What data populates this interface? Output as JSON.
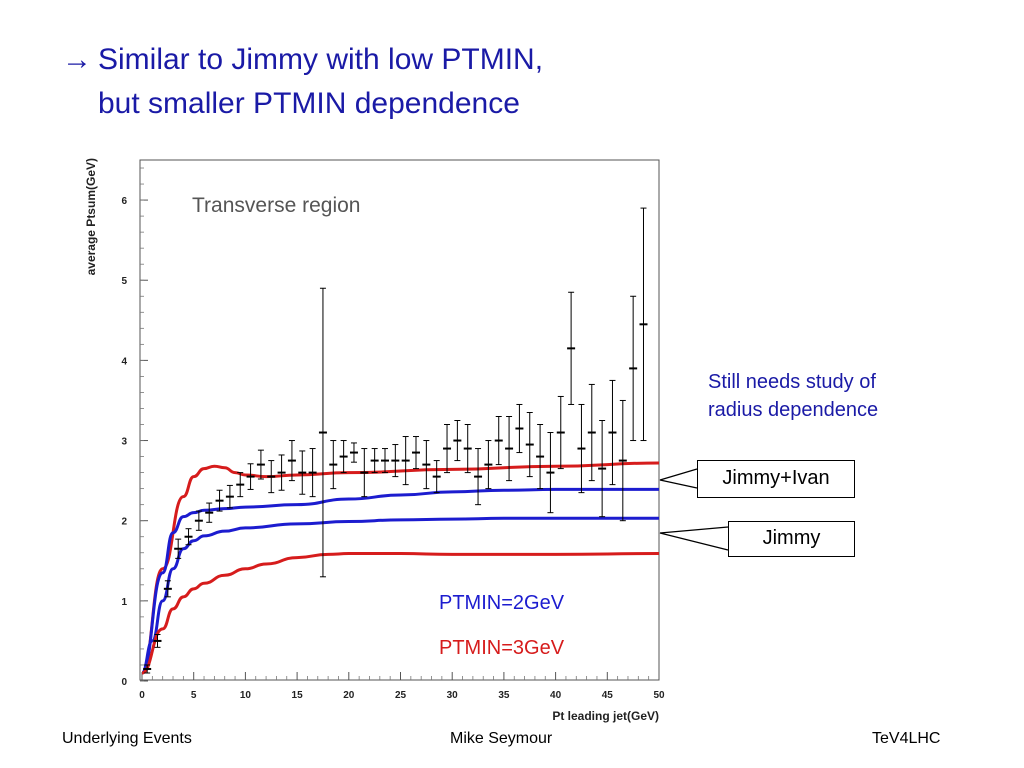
{
  "slide": {
    "title_arrow": "→",
    "title_line1": "Similar to Jimmy with low PTMIN,",
    "title_line2": "but smaller PTMIN dependence",
    "annotation_line1": "Still needs study of",
    "annotation_line2": "radius dependence",
    "callout_top": "Jimmy+Ivan",
    "callout_bottom": "Jimmy",
    "legend_blue": "PTMIN=2GeV",
    "legend_red": "PTMIN=3GeV",
    "footer_left": "Underlying Events",
    "footer_center": "Mike Seymour",
    "footer_right": "TeV4LHC"
  },
  "colors": {
    "title_blue": "#1a1aa6",
    "curve_blue": "#1c1ccf",
    "curve_red": "#d61c1c",
    "legend_blue": "#1c1ccf",
    "legend_red": "#d61c1c"
  },
  "chart_data": {
    "type": "line",
    "title": "Transverse region",
    "xlabel": "Pt leading jet(GeV)",
    "ylabel": "average Ptsum(GeV)",
    "xlim": [
      0,
      50
    ],
    "ylim": [
      0,
      6.5
    ],
    "xticks": [
      0,
      5,
      10,
      15,
      20,
      25,
      30,
      35,
      40,
      45,
      50
    ],
    "yticks": [
      0,
      1,
      2,
      3,
      4,
      5,
      6
    ],
    "grid": false,
    "data_points": [
      {
        "x": 0.5,
        "y": 0.15,
        "err": 0.05
      },
      {
        "x": 1.5,
        "y": 0.5,
        "err": 0.08
      },
      {
        "x": 2.5,
        "y": 1.15,
        "err": 0.1
      },
      {
        "x": 3.5,
        "y": 1.65,
        "err": 0.12
      },
      {
        "x": 4.5,
        "y": 1.8,
        "err": 0.1
      },
      {
        "x": 5.5,
        "y": 2.0,
        "err": 0.12
      },
      {
        "x": 6.5,
        "y": 2.1,
        "err": 0.12
      },
      {
        "x": 7.5,
        "y": 2.25,
        "err": 0.13
      },
      {
        "x": 8.5,
        "y": 2.3,
        "err": 0.14
      },
      {
        "x": 9.5,
        "y": 2.45,
        "err": 0.15
      },
      {
        "x": 10.5,
        "y": 2.55,
        "err": 0.16
      },
      {
        "x": 11.5,
        "y": 2.7,
        "err": 0.18
      },
      {
        "x": 12.5,
        "y": 2.55,
        "err": 0.2
      },
      {
        "x": 13.5,
        "y": 2.6,
        "err": 0.22
      },
      {
        "x": 14.5,
        "y": 2.75,
        "err": 0.25
      },
      {
        "x": 15.5,
        "y": 2.6,
        "err": 0.27
      },
      {
        "x": 16.5,
        "y": 2.6,
        "err": 0.3
      },
      {
        "x": 17.5,
        "y": 3.1,
        "err": 1.8
      },
      {
        "x": 18.5,
        "y": 2.7,
        "err": 0.3
      },
      {
        "x": 19.5,
        "y": 2.8,
        "err": 0.2
      },
      {
        "x": 20.5,
        "y": 2.85,
        "err": 0.12
      },
      {
        "x": 21.5,
        "y": 2.6,
        "err": 0.3
      },
      {
        "x": 22.5,
        "y": 2.75,
        "err": 0.15
      },
      {
        "x": 23.5,
        "y": 2.75,
        "err": 0.15
      },
      {
        "x": 24.5,
        "y": 2.75,
        "err": 0.2
      },
      {
        "x": 25.5,
        "y": 2.75,
        "err": 0.3
      },
      {
        "x": 26.5,
        "y": 2.85,
        "err": 0.2
      },
      {
        "x": 27.5,
        "y": 2.7,
        "err": 0.3
      },
      {
        "x": 28.5,
        "y": 2.55,
        "err": 0.2
      },
      {
        "x": 29.5,
        "y": 2.9,
        "err": 0.3
      },
      {
        "x": 30.5,
        "y": 3.0,
        "err": 0.25
      },
      {
        "x": 31.5,
        "y": 2.9,
        "err": 0.3
      },
      {
        "x": 32.5,
        "y": 2.55,
        "err": 0.35
      },
      {
        "x": 33.5,
        "y": 2.7,
        "err": 0.3
      },
      {
        "x": 34.5,
        "y": 3.0,
        "err": 0.3
      },
      {
        "x": 35.5,
        "y": 2.9,
        "err": 0.4
      },
      {
        "x": 36.5,
        "y": 3.15,
        "err": 0.3
      },
      {
        "x": 37.5,
        "y": 2.95,
        "err": 0.4
      },
      {
        "x": 38.5,
        "y": 2.8,
        "err": 0.4
      },
      {
        "x": 39.5,
        "y": 2.6,
        "err": 0.5
      },
      {
        "x": 40.5,
        "y": 3.1,
        "err": 0.45
      },
      {
        "x": 41.5,
        "y": 4.15,
        "err": 0.7
      },
      {
        "x": 42.5,
        "y": 2.9,
        "err": 0.55
      },
      {
        "x": 43.5,
        "y": 3.1,
        "err": 0.6
      },
      {
        "x": 44.5,
        "y": 2.65,
        "err": 0.6
      },
      {
        "x": 45.5,
        "y": 3.1,
        "err": 0.65
      },
      {
        "x": 46.5,
        "y": 2.75,
        "err": 0.75
      },
      {
        "x": 47.5,
        "y": 3.9,
        "err": 0.9
      },
      {
        "x": 48.5,
        "y": 4.45,
        "err": 1.45
      }
    ],
    "curves": [
      {
        "color_key": "curve_red",
        "x": [
          0,
          2,
          4,
          5,
          6,
          7,
          8,
          9,
          10,
          12,
          15,
          20,
          30,
          40,
          50
        ],
        "y": [
          0.1,
          1.4,
          2.3,
          2.55,
          2.65,
          2.68,
          2.66,
          2.6,
          2.57,
          2.55,
          2.57,
          2.6,
          2.64,
          2.68,
          2.72
        ]
      },
      {
        "color_key": "curve_blue",
        "x": [
          0,
          2,
          3,
          4,
          5,
          6,
          8,
          10,
          15,
          20,
          25,
          30,
          35,
          40,
          45,
          50
        ],
        "y": [
          0.1,
          1.35,
          1.85,
          2.05,
          2.1,
          2.13,
          2.15,
          2.17,
          2.2,
          2.27,
          2.32,
          2.36,
          2.38,
          2.39,
          2.39,
          2.39
        ]
      },
      {
        "color_key": "curve_blue",
        "x": [
          0,
          1,
          2,
          3,
          4,
          5,
          6,
          8,
          10,
          15,
          20,
          25,
          30,
          35,
          40,
          45,
          50
        ],
        "y": [
          0.1,
          0.5,
          1.0,
          1.4,
          1.65,
          1.75,
          1.81,
          1.87,
          1.91,
          1.96,
          1.99,
          2.01,
          2.02,
          2.03,
          2.03,
          2.03,
          2.03
        ]
      },
      {
        "color_key": "curve_red",
        "x": [
          0,
          2,
          3,
          4,
          5,
          6,
          8,
          10,
          12,
          15,
          18,
          20,
          25,
          30,
          40,
          50
        ],
        "y": [
          0.1,
          0.65,
          0.9,
          1.05,
          1.15,
          1.22,
          1.32,
          1.4,
          1.46,
          1.54,
          1.58,
          1.59,
          1.59,
          1.58,
          1.58,
          1.59
        ]
      }
    ]
  }
}
